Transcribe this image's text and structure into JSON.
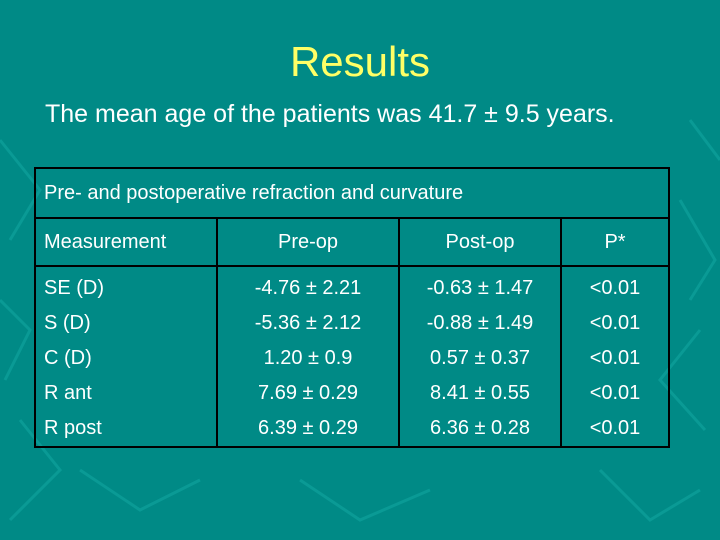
{
  "slide": {
    "title": "Results",
    "subtitle": "The mean age of the patients was 41.7 ± 9.5 years."
  },
  "table": {
    "caption": "Pre- and postoperative refraction and curvature",
    "headers": [
      "Measurement",
      "Pre-op",
      "Post-op",
      "P*"
    ],
    "rows": [
      [
        "SE (D)",
        "-4.76 ± 2.21",
        "-0.63 ± 1.47",
        "<0.01"
      ],
      [
        "S (D)",
        "-5.36 ± 2.12",
        "-0.88 ± 1.49",
        "<0.01"
      ],
      [
        "C (D)",
        "1.20 ± 0.9",
        "0.57 ± 0.37",
        "<0.01"
      ],
      [
        "R ant",
        "7.69 ± 0.29",
        "8.41 ± 0.55",
        "<0.01"
      ],
      [
        "R post",
        "6.39 ± 0.29",
        "6.36 ± 0.28",
        "<0.01"
      ]
    ]
  },
  "colors": {
    "background": "#008a86",
    "title": "#ffff66",
    "text": "#ffffff",
    "table_border": "#000000"
  }
}
